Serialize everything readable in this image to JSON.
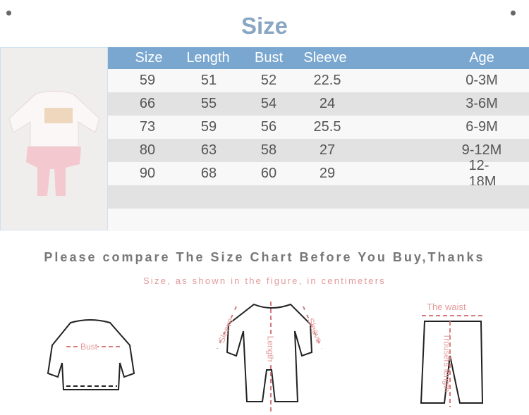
{
  "title": "Size",
  "table": {
    "headers": [
      "Size",
      "Length",
      "Bust",
      "Sleeve",
      "Age"
    ],
    "rows": [
      [
        "59",
        "51",
        "52",
        "22.5",
        "0-3M"
      ],
      [
        "66",
        "55",
        "54",
        "24",
        "3-6M"
      ],
      [
        "73",
        "59",
        "56",
        "25.5",
        "6-9M"
      ],
      [
        "80",
        "63",
        "58",
        "27",
        "9-12M"
      ],
      [
        "90",
        "68",
        "60",
        "29",
        "12-18M"
      ]
    ]
  },
  "compare_text": "Please compare The Size Chart Before You Buy,Thanks",
  "note_text": "Size, as shown in the figure, in centimeters",
  "diagrams": {
    "shirt": {
      "bust": "Bust"
    },
    "romper": {
      "sleeve": "Sleeve",
      "length": "Length"
    },
    "pants": {
      "waist": "The waist",
      "trousers_length": "Trousers length"
    }
  },
  "colors": {
    "header": "#79a7d0",
    "title": "#89a6c3",
    "measure": "#d47c7c"
  }
}
